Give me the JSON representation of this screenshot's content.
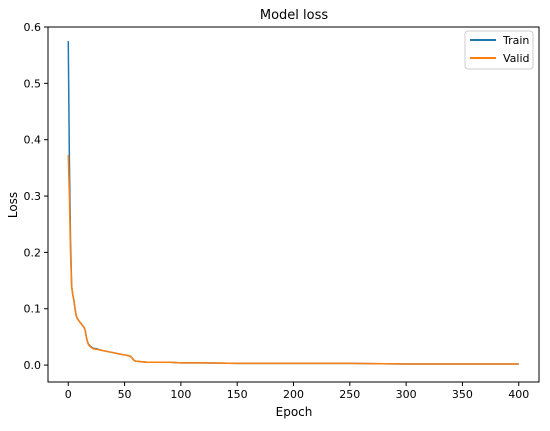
{
  "chart_data": {
    "type": "line",
    "title": "Model loss",
    "xlabel": "Epoch",
    "ylabel": "Loss",
    "xlim": [
      -18,
      418
    ],
    "ylim": [
      -0.03,
      0.6
    ],
    "xticks": [
      0,
      50,
      100,
      150,
      200,
      250,
      300,
      350,
      400
    ],
    "yticks": [
      0.0,
      0.1,
      0.2,
      0.3,
      0.4,
      0.5,
      0.6
    ],
    "grid": false,
    "legend_position": "top-right",
    "series": [
      {
        "name": "Train",
        "color": "#1f77b4",
        "points": [
          [
            0,
            0.575
          ],
          [
            1,
            0.36
          ],
          [
            2,
            0.22
          ],
          [
            3,
            0.14
          ],
          [
            4,
            0.125
          ],
          [
            5,
            0.115
          ],
          [
            6,
            0.1
          ],
          [
            7,
            0.088
          ],
          [
            8,
            0.083
          ],
          [
            10,
            0.077
          ],
          [
            12,
            0.072
          ],
          [
            14,
            0.067
          ],
          [
            15,
            0.062
          ],
          [
            16,
            0.05
          ],
          [
            17,
            0.042
          ],
          [
            18,
            0.037
          ],
          [
            20,
            0.033
          ],
          [
            22,
            0.03
          ],
          [
            25,
            0.029
          ],
          [
            28,
            0.027
          ],
          [
            30,
            0.026
          ],
          [
            35,
            0.024
          ],
          [
            40,
            0.022
          ],
          [
            45,
            0.02
          ],
          [
            50,
            0.018
          ],
          [
            55,
            0.016
          ],
          [
            57,
            0.012
          ],
          [
            58,
            0.009
          ],
          [
            60,
            0.007
          ],
          [
            65,
            0.006
          ],
          [
            70,
            0.005
          ],
          [
            80,
            0.005
          ],
          [
            90,
            0.005
          ],
          [
            100,
            0.004
          ],
          [
            120,
            0.004
          ],
          [
            150,
            0.003
          ],
          [
            200,
            0.003
          ],
          [
            250,
            0.003
          ],
          [
            300,
            0.002
          ],
          [
            350,
            0.002
          ],
          [
            400,
            0.002
          ]
        ]
      },
      {
        "name": "Valid",
        "color": "#ff7f0e",
        "points": [
          [
            0,
            0.373
          ],
          [
            1,
            0.3
          ],
          [
            2,
            0.2
          ],
          [
            3,
            0.14
          ],
          [
            4,
            0.125
          ],
          [
            5,
            0.115
          ],
          [
            6,
            0.1
          ],
          [
            7,
            0.088
          ],
          [
            8,
            0.083
          ],
          [
            10,
            0.077
          ],
          [
            12,
            0.072
          ],
          [
            14,
            0.067
          ],
          [
            15,
            0.062
          ],
          [
            16,
            0.05
          ],
          [
            17,
            0.042
          ],
          [
            18,
            0.036
          ],
          [
            20,
            0.032
          ],
          [
            22,
            0.029
          ],
          [
            25,
            0.028
          ],
          [
            28,
            0.027
          ],
          [
            30,
            0.026
          ],
          [
            35,
            0.024
          ],
          [
            40,
            0.022
          ],
          [
            45,
            0.02
          ],
          [
            50,
            0.018
          ],
          [
            55,
            0.016
          ],
          [
            57,
            0.012
          ],
          [
            58,
            0.009
          ],
          [
            60,
            0.007
          ],
          [
            65,
            0.006
          ],
          [
            70,
            0.005
          ],
          [
            80,
            0.005
          ],
          [
            90,
            0.005
          ],
          [
            100,
            0.004
          ],
          [
            120,
            0.004
          ],
          [
            150,
            0.003
          ],
          [
            200,
            0.003
          ],
          [
            250,
            0.003
          ],
          [
            300,
            0.002
          ],
          [
            350,
            0.002
          ],
          [
            400,
            0.002
          ]
        ]
      }
    ]
  }
}
